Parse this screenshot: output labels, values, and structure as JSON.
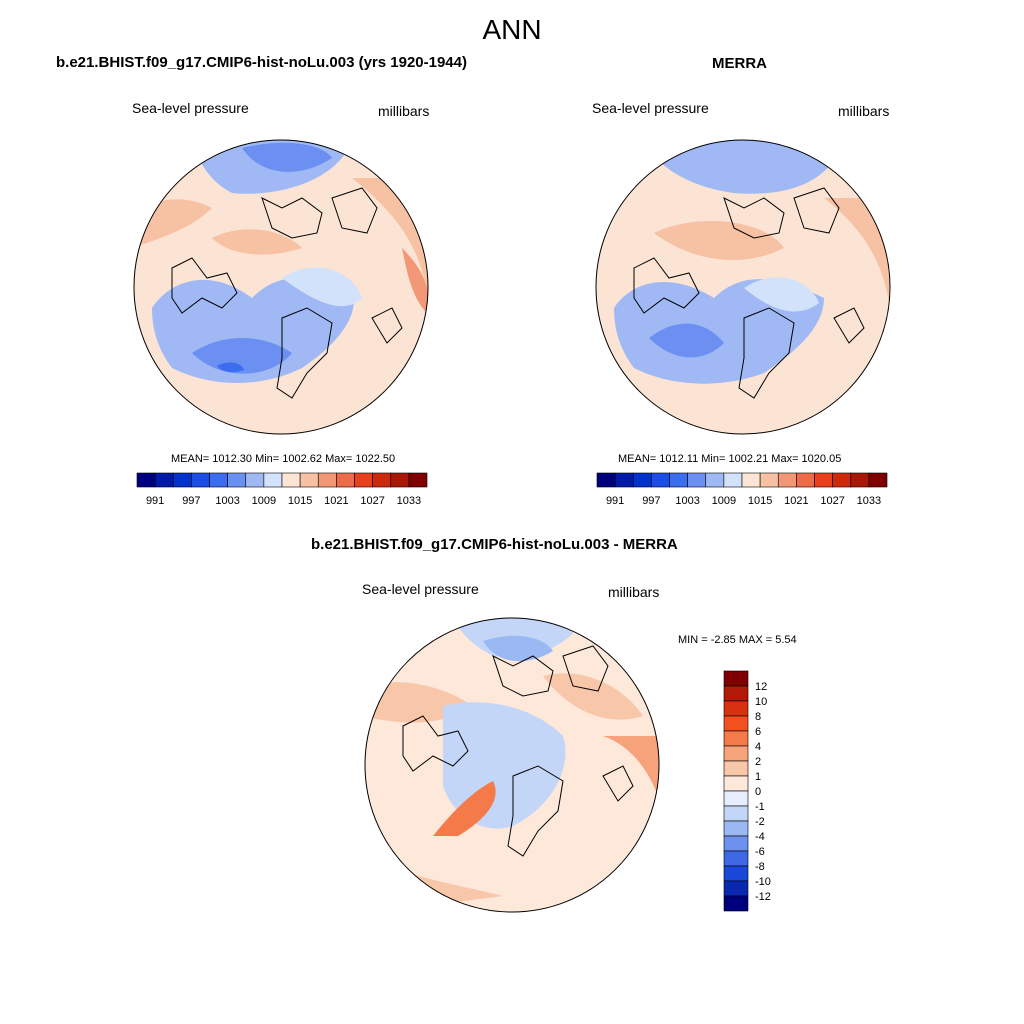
{
  "main_title": "ANN",
  "panels": [
    {
      "title": "b.e21.BHIST.f09_g17.CMIP6-hist-noLu.003 (yrs 1920-1944)",
      "variable": "Sea-level pressure",
      "units": "millibars",
      "stats": "MEAN= 1012.30  Min= 1002.62  Max= 1022.50"
    },
    {
      "title": "MERRA",
      "variable": "Sea-level pressure",
      "units": "millibars",
      "stats": "MEAN= 1012.11  Min= 1002.21  Max= 1020.05"
    },
    {
      "title": "b.e21.BHIST.f09_g17.CMIP6-hist-noLu.003 - MERRA",
      "variable": "Sea-level pressure",
      "units": "millibars",
      "stats": "MIN =  -2.85 MAX =   5.54"
    }
  ],
  "abs_colorbar": {
    "tick_labels": [
      "991",
      "997",
      "1003",
      "1009",
      "1015",
      "1021",
      "1027",
      "1033"
    ],
    "colors": [
      "#00007f",
      "#0019a8",
      "#0033cc",
      "#1a4ee6",
      "#3c6cf0",
      "#6b90f2",
      "#a0b9f5",
      "#d3e2fb",
      "#fbe4d4",
      "#f7c1a4",
      "#f29877",
      "#ee6b48",
      "#e8401c",
      "#cc2a0a",
      "#a81708",
      "#7f0000"
    ]
  },
  "diff_colorbar": {
    "tick_labels": [
      "12",
      "10",
      "8",
      "6",
      "4",
      "2",
      "1",
      "0",
      "-1",
      "-2",
      "-4",
      "-6",
      "-8",
      "-10",
      "-12"
    ],
    "colors": [
      "#7f0000",
      "#b01a06",
      "#d93010",
      "#f2501e",
      "#f47a4a",
      "#f6a27a",
      "#f8c6a8",
      "#fde8da",
      "#e6eefb",
      "#c4d6f7",
      "#9ab8f2",
      "#6b90ed",
      "#3e68e6",
      "#1a46d9",
      "#0a27b0",
      "#00007f"
    ]
  }
}
